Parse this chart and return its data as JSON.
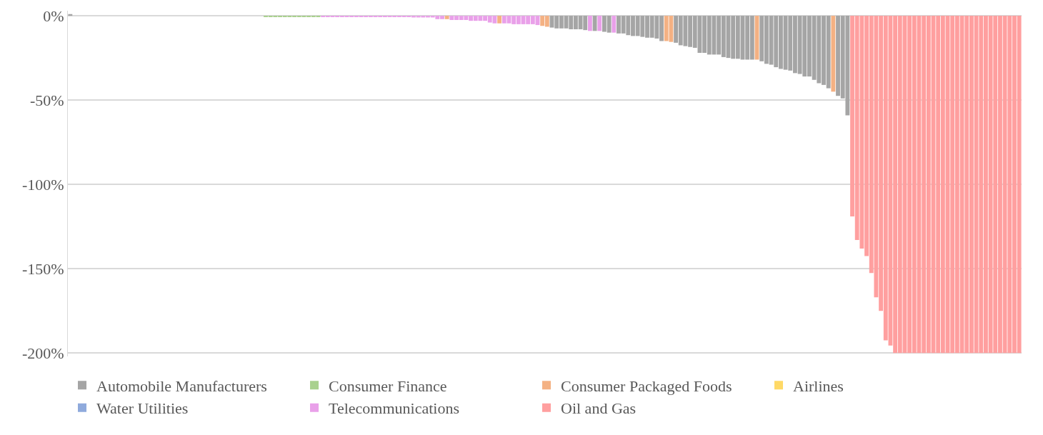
{
  "chart_data": {
    "type": "bar",
    "categories": [
      null,
      null,
      null,
      null,
      null,
      null,
      null,
      null,
      null,
      null,
      null,
      null,
      null,
      null,
      null,
      null,
      null,
      null,
      null,
      null,
      null,
      null,
      null,
      null,
      null,
      null,
      null,
      null,
      null,
      null,
      null,
      null,
      null,
      null,
      null,
      null,
      null,
      null,
      null,
      null,
      null,
      null,
      null,
      null,
      null,
      null,
      null,
      null,
      null,
      null,
      null,
      null,
      null,
      null,
      null,
      null,
      null,
      null,
      null,
      null,
      null,
      null,
      null,
      null,
      null,
      null,
      null,
      null,
      null,
      null,
      null,
      null,
      null,
      null,
      null,
      null,
      null,
      null,
      null,
      null,
      null,
      null,
      null,
      null,
      null,
      null,
      null,
      null,
      null,
      null,
      null,
      null,
      null,
      null,
      null,
      null,
      null,
      null,
      null,
      null,
      null,
      null,
      null,
      null,
      null,
      null,
      null,
      null,
      null,
      null,
      null,
      null,
      null,
      null,
      null,
      null,
      null,
      null,
      null,
      null,
      null,
      null,
      null,
      null,
      null,
      null,
      null,
      null,
      null,
      null,
      null,
      null,
      null,
      null,
      null,
      null,
      null,
      null,
      null,
      null,
      null,
      null,
      null,
      null,
      null,
      null,
      null,
      null,
      null,
      null,
      null,
      null,
      null,
      null,
      null,
      null,
      null,
      null,
      null,
      null,
      null,
      null,
      null,
      null,
      null,
      null,
      null,
      null,
      null,
      null,
      null,
      null,
      null,
      null,
      null,
      null,
      null,
      null,
      null,
      null,
      null,
      null,
      null,
      null,
      null,
      null,
      null,
      null,
      null,
      null,
      null,
      null,
      null,
      null,
      null,
      null,
      null,
      null,
      null,
      null
    ],
    "series": [
      {
        "name": "Automobile Manufacturers",
        "color": "#a5a5a5",
        "values": [
          1,
          null,
          null,
          null,
          null,
          null,
          null,
          null,
          null,
          null,
          null,
          null,
          null,
          null,
          null,
          null,
          null,
          null,
          null,
          null,
          null,
          null,
          null,
          null,
          null,
          null,
          null,
          null,
          null,
          null,
          null,
          null,
          null,
          null,
          null,
          null,
          null,
          null,
          null,
          null,
          null,
          null,
          null,
          null,
          null,
          null,
          null,
          null,
          null,
          null,
          null,
          null,
          null,
          null,
          null,
          null,
          null,
          null,
          null,
          null,
          null,
          null,
          null,
          null,
          null,
          null,
          null,
          null,
          null,
          null,
          null,
          null,
          null,
          null,
          null,
          null,
          null,
          null,
          null,
          null,
          null,
          null,
          null,
          null,
          null,
          null,
          null,
          null,
          null,
          null,
          null,
          null,
          null,
          null,
          null,
          null,
          null,
          null,
          null,
          null,
          null,
          -7,
          -7.5,
          -7.5,
          -7.5,
          -8,
          -8,
          -8,
          -8.5,
          null,
          -9,
          null,
          -9.5,
          -10,
          null,
          -10.5,
          -10.5,
          -11.5,
          -12,
          -12,
          -12.5,
          -13,
          -13,
          -13.5,
          -15,
          null,
          null,
          -16,
          -17.5,
          -18,
          -18.5,
          -19,
          -22,
          -22,
          -23,
          -23,
          -23,
          -24.5,
          -25,
          -25.5,
          -25.5,
          -26,
          -26,
          -26,
          null,
          -27,
          -28.5,
          -29,
          -30.5,
          -31.5,
          -32,
          -32.5,
          -34,
          -34.5,
          -36,
          -36,
          -38,
          -40,
          -41,
          -43,
          null,
          -47.5,
          -49,
          -59,
          null,
          null,
          null,
          null,
          null,
          null,
          null,
          null,
          null,
          null,
          null,
          null,
          null,
          null,
          null,
          null,
          null,
          null,
          null,
          null,
          null,
          null,
          null,
          null,
          null,
          null,
          null,
          null,
          null,
          null,
          null,
          null,
          null,
          null,
          null,
          null
        ]
      },
      {
        "name": "Consumer Finance",
        "color": "#a9d18e",
        "values": [
          null,
          null,
          null,
          null,
          null,
          null,
          null,
          null,
          null,
          null,
          null,
          null,
          null,
          null,
          null,
          null,
          null,
          null,
          null,
          null,
          null,
          null,
          null,
          null,
          null,
          null,
          null,
          null,
          null,
          null,
          null,
          null,
          null,
          null,
          null,
          null,
          null,
          null,
          null,
          null,
          null,
          -0.5,
          -0.5,
          -0.5,
          -0.5,
          -0.5,
          -0.5,
          -0.5,
          -0.5,
          -0.5,
          -0.5,
          -0.5,
          -0.5,
          null,
          null,
          null,
          null,
          null,
          null,
          null,
          null,
          null,
          null,
          null,
          null,
          null,
          null,
          null,
          null,
          null,
          null,
          null,
          null,
          null,
          null,
          null,
          null,
          null,
          null,
          null,
          null,
          null,
          null,
          null,
          null,
          null,
          null,
          null,
          null,
          null,
          null,
          null,
          null,
          null,
          null,
          null,
          null,
          null,
          null,
          null,
          null,
          null,
          null,
          null,
          null,
          null,
          null,
          null,
          null,
          null,
          null,
          null,
          null,
          null,
          null,
          null,
          null,
          null,
          null,
          null,
          null,
          null,
          null,
          null,
          null,
          null,
          null,
          null,
          null,
          null,
          null,
          null,
          null,
          null,
          null,
          null,
          null,
          null,
          null,
          null,
          null,
          null,
          null,
          null,
          null,
          null,
          null,
          null,
          null,
          null,
          null,
          null,
          null,
          null,
          null,
          null,
          null,
          null,
          null,
          null,
          null,
          null,
          null,
          null,
          null,
          null,
          null,
          null,
          null,
          null,
          null,
          null,
          null,
          null,
          null,
          null,
          null,
          null,
          null,
          null,
          null,
          null,
          null,
          null,
          null,
          null,
          null,
          null,
          null,
          null,
          null,
          null,
          null,
          null,
          null,
          null,
          null,
          null,
          null,
          null
        ]
      },
      {
        "name": "Consumer Packaged Foods",
        "color": "#f4b183",
        "values": [
          null,
          null,
          null,
          null,
          null,
          null,
          null,
          null,
          null,
          null,
          null,
          null,
          null,
          null,
          null,
          null,
          null,
          null,
          null,
          null,
          null,
          null,
          null,
          null,
          null,
          null,
          null,
          null,
          null,
          null,
          null,
          null,
          null,
          null,
          null,
          null,
          null,
          null,
          null,
          null,
          null,
          null,
          null,
          null,
          null,
          null,
          null,
          null,
          null,
          null,
          null,
          null,
          null,
          null,
          null,
          null,
          null,
          null,
          null,
          null,
          null,
          null,
          null,
          null,
          null,
          null,
          null,
          null,
          null,
          null,
          null,
          null,
          null,
          null,
          null,
          null,
          null,
          null,
          null,
          -2,
          null,
          null,
          null,
          null,
          null,
          null,
          null,
          null,
          null,
          null,
          -4.5,
          null,
          null,
          null,
          null,
          null,
          null,
          null,
          null,
          -6,
          -6.5,
          null,
          null,
          null,
          null,
          null,
          null,
          null,
          null,
          null,
          null,
          null,
          null,
          null,
          null,
          null,
          null,
          null,
          null,
          null,
          null,
          null,
          null,
          null,
          null,
          -15,
          -15.5,
          null,
          null,
          null,
          null,
          null,
          null,
          null,
          null,
          null,
          null,
          null,
          null,
          null,
          null,
          null,
          null,
          null,
          -26,
          null,
          null,
          null,
          null,
          null,
          null,
          null,
          null,
          null,
          null,
          null,
          null,
          null,
          null,
          null,
          -45,
          null,
          null,
          null,
          null,
          null,
          null,
          null,
          null,
          null,
          null,
          null,
          null,
          null,
          null,
          null,
          null,
          null,
          null,
          null,
          null,
          null,
          null,
          null,
          null,
          null,
          null,
          null,
          null,
          null,
          null,
          null,
          null,
          null,
          null,
          null,
          null,
          null,
          null,
          null
        ]
      },
      {
        "name": "Airlines",
        "color": "#ffd966",
        "values": [
          null,
          null,
          null,
          null,
          null,
          null,
          null,
          null,
          null,
          null,
          null,
          null,
          null,
          null,
          null,
          null,
          null,
          null,
          null,
          null,
          0,
          0,
          0,
          0,
          0,
          0,
          0,
          0,
          0,
          0,
          0,
          0,
          0,
          0,
          0,
          0,
          0,
          0,
          0,
          0,
          0,
          null,
          null,
          null,
          null,
          null,
          null,
          null,
          null,
          null,
          null,
          null,
          null,
          null,
          null,
          null,
          null,
          null,
          null,
          null,
          null,
          null,
          null,
          null,
          null,
          null,
          null,
          null,
          null,
          null,
          null,
          null,
          null,
          null,
          null,
          null,
          null,
          null,
          null,
          null,
          null,
          null,
          null,
          null,
          null,
          null,
          null,
          null,
          null,
          null,
          null,
          null,
          null,
          null,
          null,
          null,
          null,
          null,
          null,
          null,
          null,
          null,
          null,
          null,
          null,
          null,
          null,
          null,
          null,
          null,
          null,
          null,
          null,
          null,
          null,
          null,
          null,
          null,
          null,
          null,
          null,
          null,
          null,
          null,
          null,
          null,
          null,
          null,
          null,
          null,
          null,
          null,
          null,
          null,
          null,
          null,
          null,
          null,
          null,
          null,
          null,
          null,
          null,
          null,
          null,
          null,
          null,
          null,
          null,
          null,
          null,
          null,
          null,
          null,
          null,
          null,
          null,
          null,
          null,
          null,
          null,
          null,
          null,
          null,
          null,
          null,
          null,
          null,
          null,
          null,
          null,
          null,
          null,
          null,
          null,
          null,
          null,
          null,
          null,
          null,
          null,
          null,
          null,
          null,
          null,
          null,
          null,
          null,
          null,
          null,
          null,
          null,
          null,
          null,
          null,
          null,
          null,
          null,
          null,
          null
        ]
      },
      {
        "name": "Water Utilities",
        "color": "#8faadc",
        "values": [
          null,
          0,
          0,
          0,
          0,
          0,
          0,
          0,
          0,
          0,
          0,
          0,
          0,
          0,
          0,
          0,
          0,
          0,
          0,
          0,
          null,
          null,
          null,
          null,
          null,
          null,
          null,
          null,
          null,
          null,
          null,
          null,
          null,
          null,
          null,
          null,
          null,
          null,
          null,
          null,
          null,
          null,
          null,
          null,
          null,
          null,
          null,
          null,
          null,
          null,
          null,
          null,
          null,
          null,
          null,
          null,
          null,
          null,
          null,
          null,
          null,
          null,
          null,
          null,
          null,
          null,
          null,
          null,
          null,
          null,
          null,
          null,
          null,
          null,
          null,
          null,
          null,
          null,
          null,
          null,
          null,
          null,
          null,
          null,
          null,
          null,
          null,
          null,
          null,
          null,
          null,
          null,
          null,
          null,
          null,
          null,
          null,
          null,
          null,
          null,
          null,
          null,
          null,
          null,
          null,
          null,
          null,
          null,
          null,
          null,
          null,
          null,
          null,
          null,
          null,
          null,
          null,
          null,
          null,
          null,
          null,
          null,
          null,
          null,
          null,
          null,
          null,
          null,
          null,
          null,
          null,
          null,
          null,
          null,
          null,
          null,
          null,
          null,
          null,
          null,
          null,
          null,
          null,
          null,
          null,
          null,
          null,
          null,
          null,
          null,
          null,
          null,
          null,
          null,
          null,
          null,
          null,
          null,
          null,
          null,
          null,
          null,
          null,
          null,
          null,
          null,
          null,
          null,
          null,
          null,
          null,
          null,
          null,
          null,
          null,
          null,
          null,
          null,
          null,
          null,
          null,
          null,
          null,
          null,
          null,
          null,
          null,
          null,
          null,
          null,
          null,
          null,
          null,
          null,
          null,
          null,
          null,
          null,
          null,
          null
        ]
      },
      {
        "name": "Telecommunications",
        "color": "#e9a0e9",
        "values": [
          null,
          null,
          null,
          null,
          null,
          null,
          null,
          null,
          null,
          null,
          null,
          null,
          null,
          null,
          null,
          null,
          null,
          null,
          null,
          null,
          null,
          null,
          null,
          null,
          null,
          null,
          null,
          null,
          null,
          null,
          null,
          null,
          null,
          null,
          null,
          null,
          null,
          null,
          null,
          null,
          null,
          null,
          null,
          null,
          null,
          null,
          null,
          null,
          null,
          null,
          null,
          null,
          null,
          -0.5,
          -0.5,
          -0.5,
          -0.5,
          -0.5,
          -0.5,
          -0.5,
          -0.5,
          -0.5,
          -0.5,
          -0.5,
          -0.5,
          -0.5,
          -0.5,
          -0.5,
          -0.5,
          -0.5,
          -0.5,
          -0.5,
          -1,
          -1,
          -1,
          -1,
          -1,
          -2,
          -2,
          null,
          -2.5,
          -2.5,
          -2.5,
          -2.5,
          -3,
          -3,
          -3,
          -3,
          -4,
          -4.5,
          null,
          -4.5,
          -4.5,
          -5,
          -5,
          -5,
          -5,
          -5,
          -5.5,
          null,
          null,
          null,
          null,
          null,
          null,
          null,
          null,
          null,
          null,
          -9,
          null,
          -9,
          null,
          null,
          -10,
          null,
          null,
          null,
          null,
          null,
          null,
          null,
          null,
          null,
          null,
          null,
          null,
          null,
          null,
          null,
          null,
          null,
          null,
          null,
          null,
          null,
          null,
          null,
          null,
          null,
          null,
          null,
          null,
          null,
          null,
          null,
          null,
          null,
          null,
          null,
          null,
          null,
          null,
          null,
          null,
          null,
          null,
          null,
          null,
          null,
          null,
          null,
          null,
          null,
          null,
          null,
          null,
          null,
          null,
          null,
          null,
          null,
          null,
          null,
          null,
          null,
          null,
          null,
          null,
          null,
          null,
          null,
          null,
          null,
          null,
          null,
          null,
          null,
          null,
          null,
          null,
          null,
          null,
          null,
          null,
          null,
          null,
          null,
          null,
          null
        ]
      },
      {
        "name": "Oil and Gas",
        "color": "#ff9f9f",
        "values": [
          null,
          null,
          null,
          null,
          null,
          null,
          null,
          null,
          null,
          null,
          null,
          null,
          null,
          null,
          null,
          null,
          null,
          null,
          null,
          null,
          null,
          null,
          null,
          null,
          null,
          null,
          null,
          null,
          null,
          null,
          null,
          null,
          null,
          null,
          null,
          null,
          null,
          null,
          null,
          null,
          null,
          null,
          null,
          null,
          null,
          null,
          null,
          null,
          null,
          null,
          null,
          null,
          null,
          null,
          null,
          null,
          null,
          null,
          null,
          null,
          null,
          null,
          null,
          null,
          null,
          null,
          null,
          null,
          null,
          null,
          null,
          null,
          null,
          null,
          null,
          null,
          null,
          null,
          null,
          null,
          null,
          null,
          null,
          null,
          null,
          null,
          null,
          null,
          null,
          null,
          null,
          null,
          null,
          null,
          null,
          null,
          null,
          null,
          null,
          null,
          null,
          null,
          null,
          null,
          null,
          null,
          null,
          null,
          null,
          null,
          null,
          null,
          null,
          null,
          null,
          null,
          null,
          null,
          null,
          null,
          null,
          null,
          null,
          null,
          null,
          null,
          null,
          null,
          null,
          null,
          null,
          null,
          null,
          null,
          null,
          null,
          null,
          null,
          null,
          null,
          null,
          null,
          null,
          null,
          null,
          null,
          null,
          null,
          null,
          null,
          null,
          null,
          null,
          null,
          null,
          null,
          null,
          null,
          null,
          null,
          null,
          null,
          null,
          null,
          -119,
          -133,
          -138,
          -142.5,
          -152.5,
          -167,
          -175,
          -192.5,
          -195.5,
          -200,
          -200,
          -200,
          -200,
          -200,
          -200,
          -200,
          -200,
          -200,
          -200,
          -200,
          -200,
          -200,
          -200,
          -200,
          -200,
          -200,
          -200,
          -200,
          -200,
          -200,
          -200,
          -200,
          -200,
          -200,
          -200,
          -200
        ]
      }
    ],
    "ylim": [
      -202,
      3
    ],
    "yticks": [
      {
        "value": 0,
        "label": "0%"
      },
      {
        "value": -50,
        "label": "-50%"
      },
      {
        "value": -100,
        "label": "-100%"
      },
      {
        "value": -150,
        "label": "-150%"
      },
      {
        "value": -200,
        "label": "-200%"
      }
    ],
    "tick_labels": "y",
    "grid": "y",
    "legend": "bottom"
  }
}
